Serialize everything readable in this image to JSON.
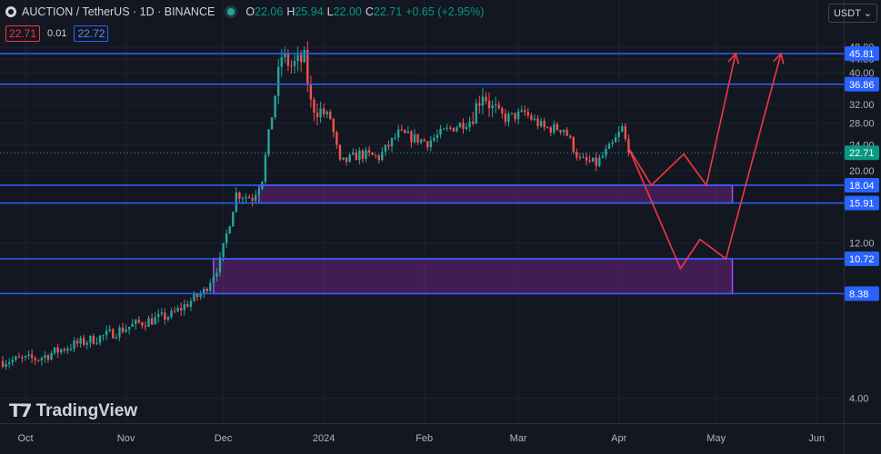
{
  "header": {
    "symbol": "AUCTION / TetherUS · 1D · BINANCE",
    "open_label": "O",
    "open": "22.06",
    "high_label": "H",
    "high": "25.94",
    "low_label": "L",
    "low": "22.00",
    "close_label": "C",
    "close": "22.71",
    "change": "+0.65 (+2.95%)",
    "sell_price": "22.71",
    "spread": "0.01",
    "buy_price": "22.72",
    "currency": "USDT ⌄",
    "brand": "TradingView"
  },
  "colors": {
    "background": "#131722",
    "up": "#26a69a",
    "down": "#ef5350",
    "level": "#2962ff",
    "zone": "#9c27b0",
    "projection": "#f23645"
  },
  "chart_data": {
    "type": "candlestick",
    "x_axis_labels": [
      "Oct",
      "Nov",
      "Dec",
      "2024",
      "Feb",
      "Mar",
      "Apr",
      "May",
      "Jun"
    ],
    "x_axis_dates": [
      "2023-10-01",
      "2023-11-01",
      "2023-12-01",
      "2024-01-01",
      "2024-02-01",
      "2024-03-01",
      "2024-04-01",
      "2024-05-01",
      "2024-06-01"
    ],
    "y_axis": {
      "scale": "log",
      "ticks": [
        48.0,
        44.0,
        40.0,
        36.0,
        32.0,
        28.0,
        24.0,
        20.0,
        12.0,
        4.0
      ]
    },
    "current_price": 22.71,
    "levels": [
      45.81,
      36.86,
      18.04,
      15.91,
      10.72,
      8.38
    ],
    "zones": [
      {
        "from": 15.91,
        "to": 18.04,
        "start": "2023-12-12",
        "end": "2024-05-06"
      },
      {
        "from": 8.38,
        "to": 10.72,
        "start": "2023-11-28",
        "end": "2024-05-06"
      }
    ],
    "projections": [
      {
        "points": [
          [
            "2024-04-04",
            23.5
          ],
          [
            "2024-04-11",
            18.04
          ],
          [
            "2024-04-21",
            22.5
          ],
          [
            "2024-04-28",
            18.04
          ],
          [
            "2024-05-07",
            45.81
          ]
        ]
      },
      {
        "points": [
          [
            "2024-04-04",
            23.5
          ],
          [
            "2024-04-20",
            10.0
          ],
          [
            "2024-04-26",
            12.3
          ],
          [
            "2024-05-04",
            10.72
          ],
          [
            "2024-05-21",
            45.81
          ]
        ]
      }
    ],
    "ohlc_anchors": [
      [
        "2023-09-24",
        5.2
      ],
      [
        "2023-10-05",
        5.3
      ],
      [
        "2023-10-15",
        5.8
      ],
      [
        "2023-10-25",
        6.2
      ],
      [
        "2023-11-05",
        6.8
      ],
      [
        "2023-11-15",
        7.2
      ],
      [
        "2023-11-25",
        8.5
      ],
      [
        "2023-11-30",
        10.5
      ],
      [
        "2023-12-03",
        14.0
      ],
      [
        "2023-12-05",
        17.0
      ],
      [
        "2023-12-10",
        16.5
      ],
      [
        "2023-12-13",
        19.0
      ],
      [
        "2023-12-16",
        30.0
      ],
      [
        "2023-12-19",
        45.0
      ],
      [
        "2023-12-22",
        42.0
      ],
      [
        "2023-12-26",
        44.0
      ],
      [
        "2023-12-28",
        32.0
      ],
      [
        "2024-01-03",
        29.0
      ],
      [
        "2024-01-06",
        21.0
      ],
      [
        "2024-01-12",
        22.5
      ],
      [
        "2024-01-18",
        22.0
      ],
      [
        "2024-01-24",
        26.0
      ],
      [
        "2024-02-02",
        24.5
      ],
      [
        "2024-02-09",
        27.0
      ],
      [
        "2024-02-15",
        28.5
      ],
      [
        "2024-02-19",
        35.0
      ],
      [
        "2024-02-22",
        31.0
      ],
      [
        "2024-02-26",
        29.0
      ],
      [
        "2024-03-03",
        30.0
      ],
      [
        "2024-03-09",
        27.0
      ],
      [
        "2024-03-15",
        27.0
      ],
      [
        "2024-03-20",
        21.5
      ],
      [
        "2024-03-25",
        21.0
      ],
      [
        "2024-03-30",
        24.0
      ],
      [
        "2024-04-02",
        27.0
      ],
      [
        "2024-04-04",
        22.71
      ]
    ]
  }
}
